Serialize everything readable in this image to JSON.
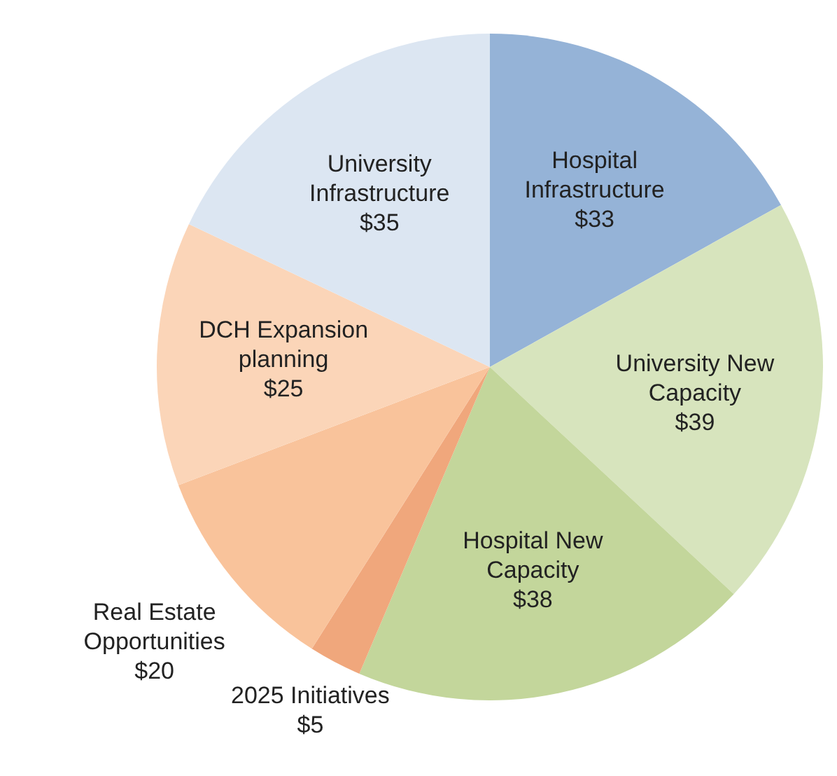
{
  "chart_data": {
    "type": "pie",
    "categories": [
      "Hospital Infrastructure",
      "University New Capacity",
      "Hospital New Capacity",
      "2025 Initiatives",
      "Real Estate Opportunities",
      "DCH Expansion planning",
      "University Infrastructure"
    ],
    "values": [
      33,
      39,
      38,
      5,
      20,
      25,
      35
    ],
    "value_labels": [
      "$33",
      "$39",
      "$38",
      "$5",
      "$20",
      "$25",
      "$35"
    ],
    "colors": [
      "#95b3d7",
      "#d7e4bd",
      "#c3d69b",
      "#f0a77c",
      "#f9c39b",
      "#fbd5b8",
      "#dce6f2"
    ]
  }
}
